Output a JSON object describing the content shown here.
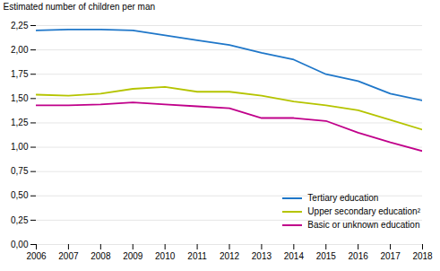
{
  "chart_data": {
    "type": "line",
    "ylabel": "Estimated number of children per man",
    "x": [
      2006,
      2007,
      2008,
      2009,
      2010,
      2011,
      2012,
      2013,
      2014,
      2015,
      2016,
      2017,
      2018
    ],
    "series": [
      {
        "name": "Tertiary education",
        "color": "#1f77c9",
        "values": [
          2.2,
          2.21,
          2.21,
          2.2,
          2.15,
          2.1,
          2.05,
          1.97,
          1.9,
          1.75,
          1.68,
          1.55,
          1.48
        ]
      },
      {
        "name": "Upper secondary education²",
        "color": "#b5c400",
        "values": [
          1.54,
          1.53,
          1.55,
          1.6,
          1.62,
          1.57,
          1.57,
          1.53,
          1.47,
          1.43,
          1.38,
          1.28,
          1.18
        ]
      },
      {
        "name": "Basic or unknown education",
        "color": "#c0008a",
        "values": [
          1.43,
          1.43,
          1.44,
          1.46,
          1.44,
          1.42,
          1.4,
          1.3,
          1.3,
          1.27,
          1.15,
          1.05,
          0.96
        ]
      }
    ],
    "xlim": [
      2006,
      2018
    ],
    "xticks": [
      2006,
      2007,
      2008,
      2009,
      2010,
      2011,
      2012,
      2013,
      2014,
      2015,
      2016,
      2017,
      2018
    ],
    "ylim": [
      0.0,
      2.25
    ],
    "yticks": [
      {
        "value": 0.0,
        "label": "0,00"
      },
      {
        "value": 0.25,
        "label": "0,25"
      },
      {
        "value": 0.5,
        "label": "0,50"
      },
      {
        "value": 0.75,
        "label": "0,75"
      },
      {
        "value": 1.0,
        "label": "1,00"
      },
      {
        "value": 1.25,
        "label": "1,25"
      },
      {
        "value": 1.5,
        "label": "1,50"
      },
      {
        "value": 1.75,
        "label": "1,75"
      },
      {
        "value": 2.0,
        "label": "2,00"
      },
      {
        "value": 2.25,
        "label": "2,25"
      }
    ],
    "grid": true,
    "legend": "lower right"
  }
}
